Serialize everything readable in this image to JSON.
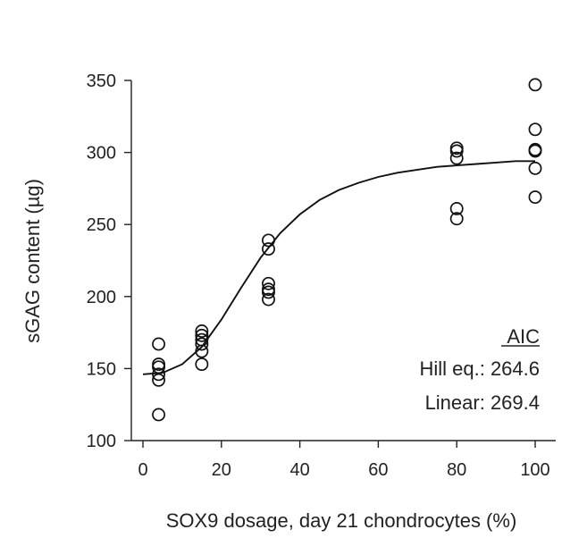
{
  "chart_data": {
    "type": "scatter",
    "title": "",
    "xlabel": "SOX9 dosage, day 21 chondrocytes (%)",
    "ylabel": "sGAG content (µg)",
    "xlim": [
      0,
      105
    ],
    "ylim": [
      100,
      350
    ],
    "xticks": [
      0,
      20,
      40,
      60,
      80,
      100
    ],
    "yticks": [
      100,
      150,
      200,
      250,
      300,
      350
    ],
    "x_tick_labels": [
      "0",
      "20",
      "40",
      "60",
      "80",
      "100"
    ],
    "y_tick_labels": [
      "100",
      "150",
      "200",
      "250",
      "300",
      "350"
    ],
    "grid": false,
    "points": [
      {
        "x": 4,
        "y": 167
      },
      {
        "x": 4,
        "y": 153
      },
      {
        "x": 4,
        "y": 151
      },
      {
        "x": 4,
        "y": 146
      },
      {
        "x": 4,
        "y": 142
      },
      {
        "x": 4,
        "y": 118
      },
      {
        "x": 15,
        "y": 176
      },
      {
        "x": 15,
        "y": 173
      },
      {
        "x": 15,
        "y": 170
      },
      {
        "x": 15,
        "y": 167
      },
      {
        "x": 15,
        "y": 162
      },
      {
        "x": 15,
        "y": 153
      },
      {
        "x": 32,
        "y": 239
      },
      {
        "x": 32,
        "y": 233
      },
      {
        "x": 32,
        "y": 209
      },
      {
        "x": 32,
        "y": 205
      },
      {
        "x": 32,
        "y": 203
      },
      {
        "x": 32,
        "y": 198
      },
      {
        "x": 80,
        "y": 303
      },
      {
        "x": 80,
        "y": 301
      },
      {
        "x": 80,
        "y": 296
      },
      {
        "x": 80,
        "y": 261
      },
      {
        "x": 80,
        "y": 254
      },
      {
        "x": 100,
        "y": 347
      },
      {
        "x": 100,
        "y": 316
      },
      {
        "x": 100,
        "y": 302
      },
      {
        "x": 100,
        "y": 301
      },
      {
        "x": 100,
        "y": 289
      },
      {
        "x": 100,
        "y": 269
      }
    ],
    "fit_curve": {
      "model": "Hill equation",
      "x": [
        0,
        5,
        10,
        15,
        20,
        25,
        30,
        35,
        40,
        45,
        50,
        55,
        60,
        65,
        70,
        75,
        80,
        85,
        90,
        95,
        100
      ],
      "y": [
        146,
        147,
        153,
        165,
        184,
        206,
        227,
        244,
        257,
        267,
        274,
        279,
        283,
        286,
        288,
        290,
        291,
        292,
        293,
        294,
        294
      ]
    },
    "annotations": {
      "heading": "AIC",
      "hill": "Hill eq.: 264.6",
      "linear": "Linear: 269.4"
    }
  }
}
